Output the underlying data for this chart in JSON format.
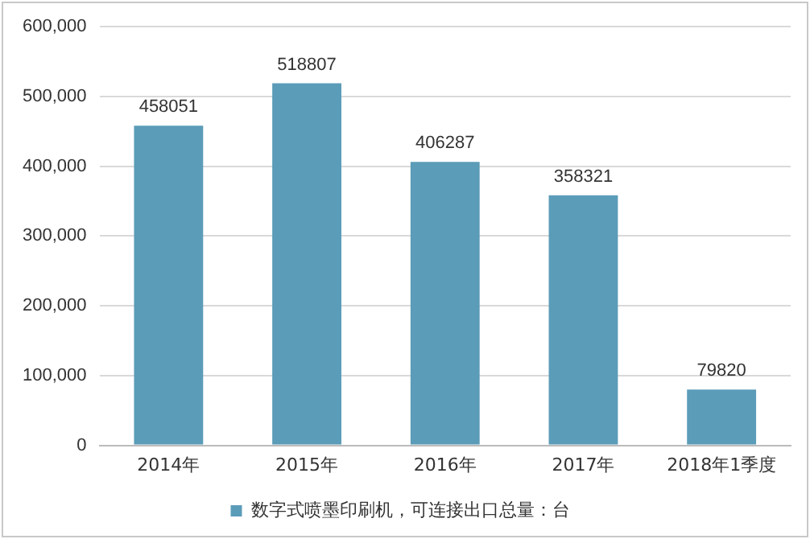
{
  "chart_data": {
    "type": "bar",
    "categories": [
      "2014年",
      "2015年",
      "2016年",
      "2017年",
      "2018年1季度"
    ],
    "series": [
      {
        "name": "数字式喷墨印刷机，可连接出口总量：台",
        "color": "#5b9cb8",
        "values": [
          458051,
          518807,
          406287,
          358321,
          79820
        ]
      }
    ],
    "ylim": [
      0,
      600000
    ],
    "yticks": [
      {
        "value": 0,
        "label": "0"
      },
      {
        "value": 100000,
        "label": "100,000"
      },
      {
        "value": 200000,
        "label": "200,000"
      },
      {
        "value": 300000,
        "label": "300,000"
      },
      {
        "value": 400000,
        "label": "400,000"
      },
      {
        "value": 500000,
        "label": "500,000"
      },
      {
        "value": 600000,
        "label": "600,000"
      }
    ],
    "grid": "y",
    "legend": "bottom",
    "data_labels": true
  }
}
